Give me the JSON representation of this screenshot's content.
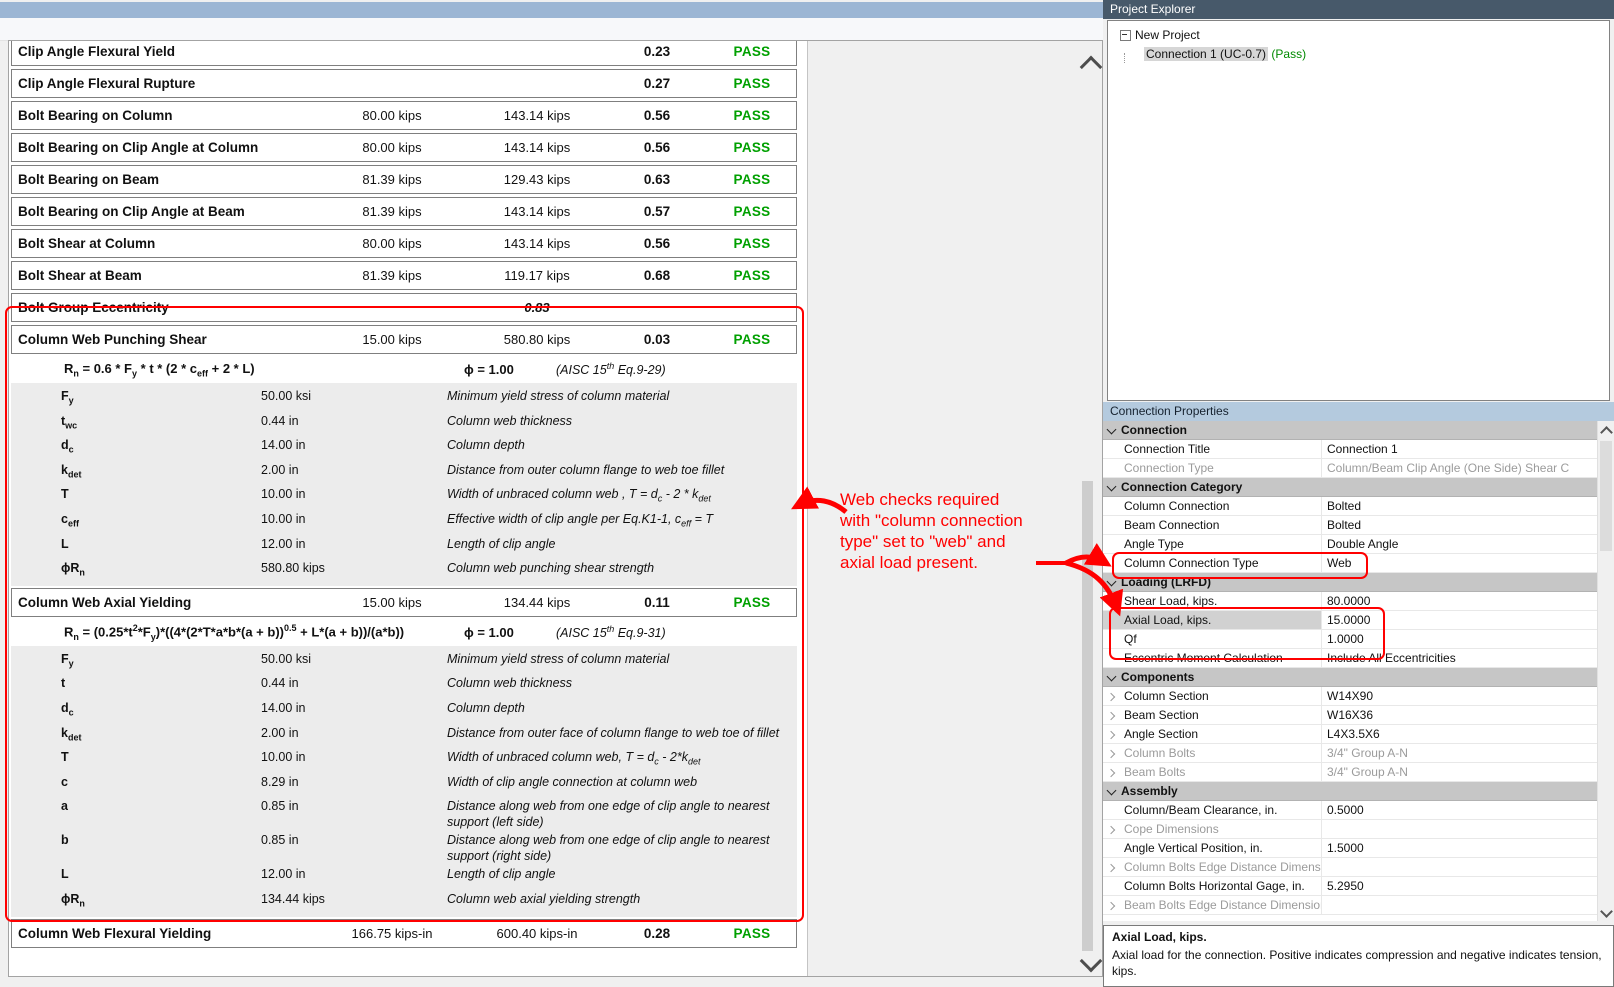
{
  "report": {
    "checks": [
      {
        "name": "Clip Angle Flexural Yield",
        "demand": "",
        "capacity": "",
        "ratio": "0.23",
        "status": "PASS"
      },
      {
        "name": "Clip Angle Flexural Rupture",
        "demand": "",
        "capacity": "",
        "ratio": "0.27",
        "status": "PASS"
      },
      {
        "name": "Bolt Bearing on Column",
        "demand": "80.00 kips",
        "capacity": "143.14 kips",
        "ratio": "0.56",
        "status": "PASS"
      },
      {
        "name": "Bolt Bearing on Clip Angle at Column",
        "demand": "80.00 kips",
        "capacity": "143.14 kips",
        "ratio": "0.56",
        "status": "PASS"
      },
      {
        "name": "Bolt Bearing on Beam",
        "demand": "81.39 kips",
        "capacity": "129.43 kips",
        "ratio": "0.63",
        "status": "PASS"
      },
      {
        "name": "Bolt Bearing on Clip Angle at Beam",
        "demand": "81.39 kips",
        "capacity": "143.14 kips",
        "ratio": "0.57",
        "status": "PASS"
      },
      {
        "name": "Bolt Shear at Column",
        "demand": "80.00 kips",
        "capacity": "143.14 kips",
        "ratio": "0.56",
        "status": "PASS"
      },
      {
        "name": "Bolt Shear at Beam",
        "demand": "81.39 kips",
        "capacity": "119.17 kips",
        "ratio": "0.68",
        "status": "PASS"
      },
      {
        "name": "Bolt Group Eccentricity",
        "demand": "",
        "capacity": "0.83",
        "ratio": "",
        "status": "",
        "capacity_italic": true
      }
    ],
    "sections": [
      {
        "name": "Column Web Punching Shear",
        "demand": "15.00 kips",
        "capacity": "580.80 kips",
        "ratio": "0.03",
        "status": "PASS",
        "formula_html": "R<sub>n</sub> = 0.6 * F<sub>y</sub> * t * (2 * c<sub>eff</sub> + 2 * L)",
        "phi": "ϕ = 1.00",
        "ref_html": "(AISC 15<sup>th</sup> Eq.9-29)",
        "vars": [
          {
            "sym_html": "F<sub>y</sub>",
            "value": "50.00 ksi",
            "desc_html": "Minimum yield stress of column material"
          },
          {
            "sym_html": "t<sub>wc</sub>",
            "value": "0.44 in",
            "desc_html": "Column web thickness"
          },
          {
            "sym_html": "d<sub>c</sub>",
            "value": "14.00 in",
            "desc_html": "Column depth"
          },
          {
            "sym_html": "k<sub>det</sub>",
            "value": "2.00 in",
            "desc_html": "Distance from outer column flange to web toe fillet"
          },
          {
            "sym_html": "T",
            "value": "10.00 in",
            "desc_html": "Width of unbraced column web , T = d<sub>c</sub> - 2 * k<sub>det</sub>"
          },
          {
            "sym_html": "c<sub>eff</sub>",
            "value": "10.00 in",
            "desc_html": "Effective width of clip angle per Eq.K1-1, c<sub>eff</sub> = T"
          },
          {
            "sym_html": "L",
            "value": "12.00 in",
            "desc_html": "Length of clip angle"
          },
          {
            "sym_html": "ϕR<sub>n</sub>",
            "value": "580.80 kips",
            "desc_html": "Column web punching shear strength"
          }
        ]
      },
      {
        "name": "Column Web Axial Yielding",
        "demand": "15.00 kips",
        "capacity": "134.44 kips",
        "ratio": "0.11",
        "status": "PASS",
        "formula_html": "R<sub>n</sub> = (0.25*t<sup>2</sup>*F<sub>y</sub>)*((4*(2*T*a*b*(a + b))<sup>0.5</sup> + L*(a + b))/(a*b))",
        "phi": "ϕ = 1.00",
        "ref_html": "(AISC 15<sup>th</sup> Eq.9-31)",
        "vars": [
          {
            "sym_html": "F<sub>y</sub>",
            "value": "50.00 ksi",
            "desc_html": "Minimum yield stress of column material"
          },
          {
            "sym_html": "t",
            "value": "0.44 in",
            "desc_html": "Column web thickness"
          },
          {
            "sym_html": "d<sub>c</sub>",
            "value": "14.00 in",
            "desc_html": "Column depth"
          },
          {
            "sym_html": "k<sub>det</sub>",
            "value": "2.00 in",
            "desc_html": "Distance from outer face of column flange to web toe of fillet"
          },
          {
            "sym_html": "T",
            "value": "10.00 in",
            "desc_html": "Width of unbraced column web, T = d<sub>c</sub> - 2*k<sub>det</sub>"
          },
          {
            "sym_html": "c",
            "value": "8.29 in",
            "desc_html": "Width of clip angle connection at column web"
          },
          {
            "sym_html": "a",
            "value": "0.85 in",
            "desc_html": "Distance along web from one edge of clip angle to nearest support (left side)"
          },
          {
            "sym_html": "b",
            "value": "0.85 in",
            "desc_html": "Distance along web from one edge of clip angle to nearest support (right side)"
          },
          {
            "sym_html": "L",
            "value": "12.00 in",
            "desc_html": "Length of clip angle"
          },
          {
            "sym_html": "ϕR<sub>n</sub>",
            "value": "134.44 kips",
            "desc_html": "Column web axial yielding strength"
          }
        ]
      }
    ],
    "final_check": {
      "name": "Column Web Flexural Yielding",
      "demand": "166.75 kips-in",
      "capacity": "600.40 kips-in",
      "ratio": "0.28",
      "status": "PASS"
    }
  },
  "annotation": {
    "text": "Web checks required\nwith \"column connection\ntype\" set to \"web\" and\naxial load present."
  },
  "project_explorer": {
    "title": "Project Explorer",
    "root_label": "New Project",
    "child_label": "Connection 1  (UC-0.7)",
    "child_status": "(Pass)"
  },
  "properties": {
    "title": "Connection Properties",
    "rows": [
      {
        "kind": "cat",
        "label": "Connection"
      },
      {
        "kind": "prop",
        "label": "Connection Title",
        "value": "Connection 1"
      },
      {
        "kind": "prop",
        "label": "Connection Type",
        "value": "Column/Beam Clip Angle (One Side) Shear C",
        "disabled": true
      },
      {
        "kind": "cat",
        "label": "Connection Category"
      },
      {
        "kind": "prop",
        "label": "Column Connection",
        "value": "Bolted"
      },
      {
        "kind": "prop",
        "label": "Beam Connection",
        "value": "Bolted"
      },
      {
        "kind": "prop",
        "label": "Angle Type",
        "value": "Double Angle"
      },
      {
        "kind": "prop",
        "label": "Column Connection Type",
        "value": "Web"
      },
      {
        "kind": "cat",
        "label": "Loading (LRFD)"
      },
      {
        "kind": "prop",
        "label": "Shear Load, kips.",
        "value": "80.0000"
      },
      {
        "kind": "prop",
        "label": "Axial Load, kips.",
        "value": "15.0000",
        "selected": true
      },
      {
        "kind": "prop",
        "label": "Qf",
        "value": "1.0000"
      },
      {
        "kind": "prop",
        "label": "Eccentric Moment Calculation",
        "value": "Include All Eccentricities"
      },
      {
        "kind": "cat",
        "label": "Components"
      },
      {
        "kind": "prop",
        "label": "Column Section",
        "value": "W14X90",
        "expandable": true
      },
      {
        "kind": "prop",
        "label": "Beam Section",
        "value": "W16X36",
        "expandable": true
      },
      {
        "kind": "prop",
        "label": "Angle Section",
        "value": "L4X3.5X6",
        "expandable": true
      },
      {
        "kind": "prop",
        "label": "Column Bolts",
        "value": "3/4\" Group A-N",
        "expandable": true,
        "disabled": true
      },
      {
        "kind": "prop",
        "label": "Beam Bolts",
        "value": "3/4\" Group A-N",
        "expandable": true,
        "disabled": true
      },
      {
        "kind": "cat",
        "label": "Assembly"
      },
      {
        "kind": "prop",
        "label": "Column/Beam Clearance, in.",
        "value": "0.5000"
      },
      {
        "kind": "prop",
        "label": "Cope Dimensions",
        "value": "",
        "expandable": true,
        "disabled": true
      },
      {
        "kind": "prop",
        "label": "Angle Vertical Position, in.",
        "value": "1.5000"
      },
      {
        "kind": "prop",
        "label": "Column Bolts Edge Distance Dimensions",
        "value": "",
        "expandable": true,
        "disabled": true
      },
      {
        "kind": "prop",
        "label": "Column Bolts Horizontal Gage, in.",
        "value": "5.2950"
      },
      {
        "kind": "prop",
        "label": "Beam Bolts Edge Distance Dimensions",
        "value": "",
        "expandable": true,
        "disabled": true
      }
    ],
    "help": {
      "title": "Axial Load, kips.",
      "text": "Axial load for the connection. Positive indicates compression and negative indicates tension, kips."
    }
  },
  "colors": {
    "pass_green": "#00a000",
    "tree_pass_green": "#008a00",
    "annotation_red": "#ff0000",
    "toolbar_blue": "#9cb6d4",
    "explorer_header_bg": "#47596a",
    "properties_header_bg": "#b4cade"
  }
}
